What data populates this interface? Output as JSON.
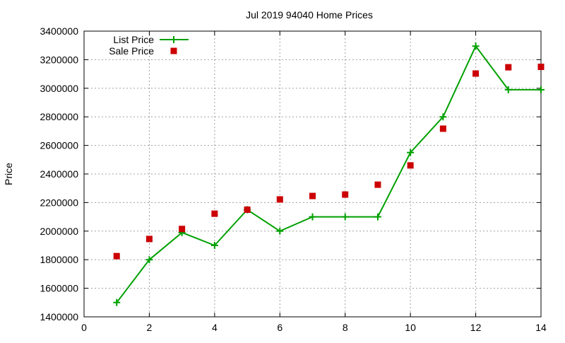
{
  "chart_data": {
    "type": "line",
    "title": "Jul 2019 94040 Home Prices",
    "xlabel": "",
    "ylabel": "Price",
    "xlim": [
      0,
      14
    ],
    "ylim": [
      1400000,
      3400000
    ],
    "xticks": [
      0,
      2,
      4,
      6,
      8,
      10,
      12,
      14
    ],
    "yticks": [
      1400000,
      1600000,
      1800000,
      2000000,
      2200000,
      2400000,
      2600000,
      2800000,
      3000000,
      3200000,
      3400000
    ],
    "grid": true,
    "legend_position": "top-left",
    "x": [
      1,
      2,
      3,
      4,
      5,
      6,
      7,
      8,
      9,
      10,
      11,
      12,
      13,
      14
    ],
    "series": [
      {
        "name": "List Price",
        "style": "linespoints",
        "color": "#00a000",
        "values": [
          1500000,
          1800000,
          1990000,
          1900000,
          2150000,
          2000000,
          2100000,
          2100000,
          2100000,
          2550000,
          2800000,
          3295000,
          2990000,
          2990000
        ]
      },
      {
        "name": "Sale Price",
        "style": "points",
        "color": "#cc0000",
        "values": [
          1825000,
          1945000,
          2015000,
          2122000,
          2150000,
          2222000,
          2246000,
          2256000,
          2325000,
          2460000,
          2717000,
          3103000,
          3147000,
          3150000
        ]
      }
    ]
  }
}
